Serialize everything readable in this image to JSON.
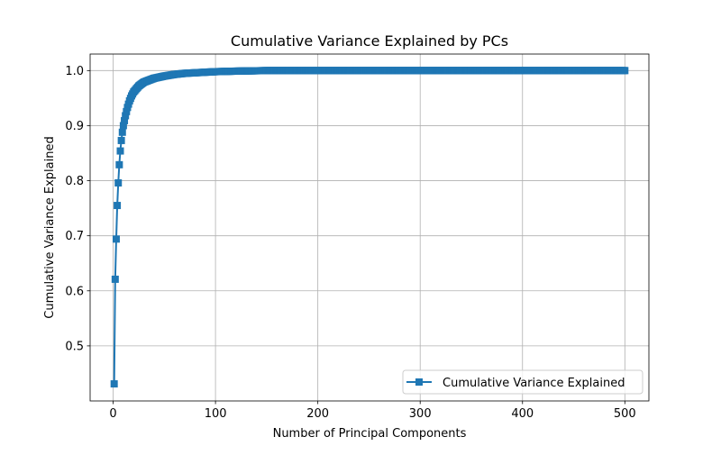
{
  "chart_data": {
    "type": "line",
    "title": "Cumulative Variance Explained by PCs",
    "xlabel": "Number of Principal Components",
    "ylabel": "Cumulative Variance Explained",
    "xlim": [
      -22.5,
      523.5
    ],
    "ylim": [
      0.4,
      1.03
    ],
    "xticks": [
      0,
      100,
      200,
      300,
      400,
      500
    ],
    "yticks": [
      0.5,
      0.6,
      0.7,
      0.8,
      0.9,
      1.0
    ],
    "xtick_labels": [
      "0",
      "100",
      "200",
      "300",
      "400",
      "500"
    ],
    "ytick_labels": [
      "0.5",
      "0.6",
      "0.7",
      "0.8",
      "0.9",
      "1.0"
    ],
    "grid": true,
    "legend_position": "lower-right",
    "series": [
      {
        "name": "Cumulative Variance Explained",
        "color": "#1f77b4",
        "marker": "square",
        "x_start": 1,
        "x_end": 500,
        "anchors": [
          [
            1,
            0.431
          ],
          [
            2,
            0.621
          ],
          [
            3,
            0.694
          ],
          [
            4,
            0.755
          ],
          [
            5,
            0.796
          ],
          [
            6,
            0.829
          ],
          [
            7,
            0.854
          ],
          [
            8,
            0.873
          ],
          [
            9,
            0.888
          ],
          [
            10,
            0.9
          ],
          [
            12,
            0.918
          ],
          [
            14,
            0.933
          ],
          [
            16,
            0.945
          ],
          [
            18,
            0.954
          ],
          [
            20,
            0.961
          ],
          [
            25,
            0.972
          ],
          [
            30,
            0.979
          ],
          [
            40,
            0.986
          ],
          [
            50,
            0.99
          ],
          [
            60,
            0.993
          ],
          [
            70,
            0.995
          ],
          [
            80,
            0.996
          ],
          [
            100,
            0.998
          ],
          [
            120,
            0.999
          ],
          [
            150,
            1.0
          ],
          [
            500,
            1.0
          ]
        ]
      }
    ]
  }
}
